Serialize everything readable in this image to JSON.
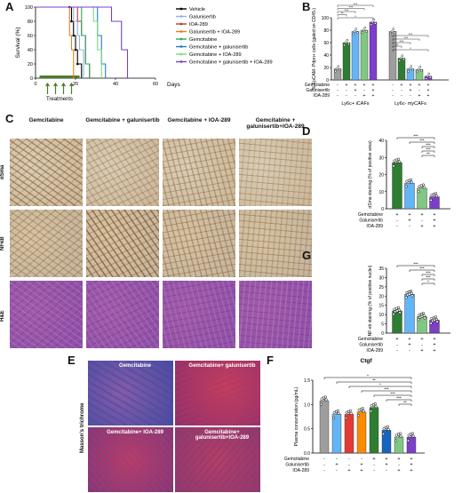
{
  "panels": {
    "A": {
      "letter": "A",
      "ylabel": "Survival (%)",
      "xlabel": "Days",
      "treatments_label": "Treatments",
      "yticks": [
        "0",
        "20",
        "40",
        "60",
        "80",
        "100"
      ],
      "xticks": [
        "0",
        "20",
        "40",
        "60"
      ],
      "legend": [
        {
          "name": "Vehicle",
          "color": "#000000"
        },
        {
          "name": "Galunisertib",
          "color": "#8fb4e3"
        },
        {
          "name": "IOA-289",
          "color": "#c0392b"
        },
        {
          "name": "Galunisertib + IOA-289",
          "color": "#e67e22"
        },
        {
          "name": "Gemcitabine",
          "color": "#27ae60"
        },
        {
          "name": "Gemcitabine + galunisertib",
          "color": "#1f7fc4"
        },
        {
          "name": "Gemcitabine + IOA-289",
          "color": "#7dd87d"
        },
        {
          "name": "Gemcitabine + galunisertib + IOA-289",
          "color": "#7b3fc8"
        }
      ]
    },
    "B": {
      "letter": "B",
      "ylabel": "% EpCAM- Pdpn+ cells (gated on CD45-)",
      "yticks": [
        "0",
        "20",
        "40",
        "60",
        "80",
        "100"
      ],
      "groups": [
        "Ly6c+ iCAFs",
        "Ly6c- myCAFs"
      ],
      "factors": [
        "Gemcitabine",
        "Galunisertib",
        "IOA-289"
      ],
      "signs": [
        [
          "-",
          "+",
          "+",
          "+",
          "+"
        ],
        [
          "-",
          "-",
          "+",
          "-",
          "+"
        ],
        [
          "-",
          "-",
          "-",
          "+",
          "+"
        ]
      ],
      "sig": [
        "***",
        "***",
        "***",
        "**",
        "*"
      ]
    },
    "C": {
      "letter": "C",
      "col_headers": [
        "Gemcitabine",
        "Gemcitabine + galunisertib",
        "Gemcitabine + IOA-289",
        "Gemcitabine + galunisertib+IOA-289"
      ],
      "row_labels": [
        "αSma",
        "NFκB",
        "H&E"
      ]
    },
    "D": {
      "letter": "D",
      "ylabel": "αSma staining (% of positive area)",
      "yticks": [
        "0",
        "10",
        "20",
        "30",
        "40"
      ],
      "factors": [
        "Gemcitabine",
        "Galunisertib",
        "IOA-289"
      ],
      "signs": [
        [
          "+",
          "+",
          "+",
          "+"
        ],
        [
          "-",
          "+",
          "-",
          "+"
        ],
        [
          "-",
          "-",
          "+",
          "+"
        ]
      ],
      "sig": [
        "***",
        "***",
        "***",
        "***",
        "**"
      ]
    },
    "G": {
      "letter": "G",
      "ylabel": "NF-κb staining (% of positive nuclei)",
      "yticks": [
        "0",
        "5",
        "10",
        "15",
        "20",
        "25",
        "30",
        "35"
      ],
      "factors": [
        "Gemcitabine",
        "Galunisertib",
        "IOA-289"
      ],
      "signs": [
        [
          "+",
          "+",
          "+",
          "+"
        ],
        [
          "-",
          "+",
          "-",
          "+"
        ],
        [
          "-",
          "-",
          "+",
          "+"
        ]
      ],
      "sig": [
        "***",
        "***",
        "***",
        "***",
        "*"
      ]
    },
    "E": {
      "letter": "E",
      "row_label": "Masson's trichrome",
      "tile_labels": [
        "Gemcitabine",
        "Gemcitabine+ galunisertib",
        "Gemcitabine+ IOA-289",
        "Gemcitabine+ galunisertib+IOA-289"
      ]
    },
    "F": {
      "letter": "F",
      "title": "Ctgf",
      "ylabel": "Plasma concentration (pg/mL)",
      "yticks": [
        "0.0",
        "0.5",
        "1.0",
        "1.5"
      ],
      "factors": [
        "Gemcitabine",
        "Galunisertib",
        "IOA-289"
      ],
      "signs": [
        [
          "-",
          "-",
          "-",
          "-",
          "+",
          "+",
          "+",
          "+"
        ],
        [
          "-",
          "+",
          "-",
          "+",
          "-",
          "+",
          "-",
          "+"
        ],
        [
          "-",
          "-",
          "+",
          "+",
          "-",
          "-",
          "+",
          "+"
        ]
      ],
      "sig": [
        "*",
        "**",
        "*",
        "***",
        "***",
        "***",
        "**"
      ]
    }
  },
  "chart_data": [
    {
      "type": "line",
      "panel": "A",
      "xlabel": "Days",
      "ylabel": "Survival (%)",
      "xlim": [
        0,
        60
      ],
      "ylim": [
        0,
        100
      ],
      "series": [
        {
          "name": "Vehicle",
          "x": [
            0,
            17,
            18,
            19,
            20,
            21,
            23
          ],
          "y": [
            100,
            100,
            80,
            60,
            40,
            20,
            0
          ]
        },
        {
          "name": "Galunisertib",
          "x": [
            0,
            18,
            19,
            21,
            22,
            24
          ],
          "y": [
            100,
            100,
            80,
            60,
            40,
            0
          ]
        },
        {
          "name": "IOA-289",
          "x": [
            0,
            20,
            21,
            23,
            25,
            27
          ],
          "y": [
            100,
            100,
            80,
            60,
            20,
            0
          ]
        },
        {
          "name": "Galunisertib + IOA-289",
          "x": [
            0,
            16,
            17,
            18,
            19
          ],
          "y": [
            100,
            100,
            60,
            40,
            0
          ]
        },
        {
          "name": "Gemcitabine",
          "x": [
            0,
            22,
            23,
            25,
            27
          ],
          "y": [
            100,
            100,
            60,
            20,
            0
          ]
        },
        {
          "name": "Gemcitabine + galunisertib",
          "x": [
            0,
            30,
            31,
            33,
            35
          ],
          "y": [
            100,
            100,
            60,
            20,
            0
          ]
        },
        {
          "name": "Gemcitabine + IOA-289",
          "x": [
            0,
            28,
            29,
            31,
            33
          ],
          "y": [
            100,
            100,
            80,
            40,
            0
          ]
        },
        {
          "name": "Gemcitabine + galunisertib + IOA-289",
          "x": [
            0,
            36,
            38,
            43,
            46
          ],
          "y": [
            100,
            100,
            80,
            40,
            0
          ]
        }
      ]
    },
    {
      "type": "bar",
      "panel": "B",
      "ylabel": "% EpCAM- Pdpn+ cells (gated on CD45-)",
      "ylim": [
        0,
        100
      ],
      "groups": [
        "Ly6c+ iCAFs",
        "Ly6c- myCAFs"
      ],
      "series": [
        {
          "name": "Ly6c+ iCAFs",
          "values": [
            18,
            60,
            78,
            80,
            93
          ],
          "colors": [
            "#9e9e9e",
            "#2e7d32",
            "#64b5f6",
            "#81c784",
            "#7b3fc8"
          ]
        },
        {
          "name": "Ly6c- myCAFs",
          "values": [
            78,
            35,
            18,
            17,
            6
          ],
          "colors": [
            "#9e9e9e",
            "#2e7d32",
            "#64b5f6",
            "#81c784",
            "#7b3fc8"
          ]
        }
      ]
    },
    {
      "type": "bar",
      "panel": "D",
      "ylabel": "αSma staining (% of positive area)",
      "ylim": [
        0,
        40
      ],
      "values": [
        27,
        15,
        12,
        7
      ],
      "colors": [
        "#2e7d32",
        "#64b5f6",
        "#81c784",
        "#7b3fc8"
      ]
    },
    {
      "type": "bar",
      "panel": "G",
      "ylabel": "NF-κb staining (% of positive nuclei)",
      "ylim": [
        0,
        35
      ],
      "values": [
        12,
        21,
        9,
        7
      ],
      "colors": [
        "#2e7d32",
        "#64b5f6",
        "#81c784",
        "#7b3fc8"
      ]
    },
    {
      "type": "bar",
      "panel": "F",
      "title": "Ctgf",
      "ylabel": "Plasma concentration (pg/mL)",
      "ylim": [
        0,
        1.6
      ],
      "values": [
        1.15,
        0.85,
        0.85,
        0.9,
        1.0,
        0.5,
        0.35,
        0.35
      ],
      "colors": [
        "#9e9e9e",
        "#64b5f6",
        "#e53935",
        "#fb8c00",
        "#2e7d32",
        "#1565c0",
        "#81c784",
        "#7b3fc8"
      ]
    }
  ]
}
